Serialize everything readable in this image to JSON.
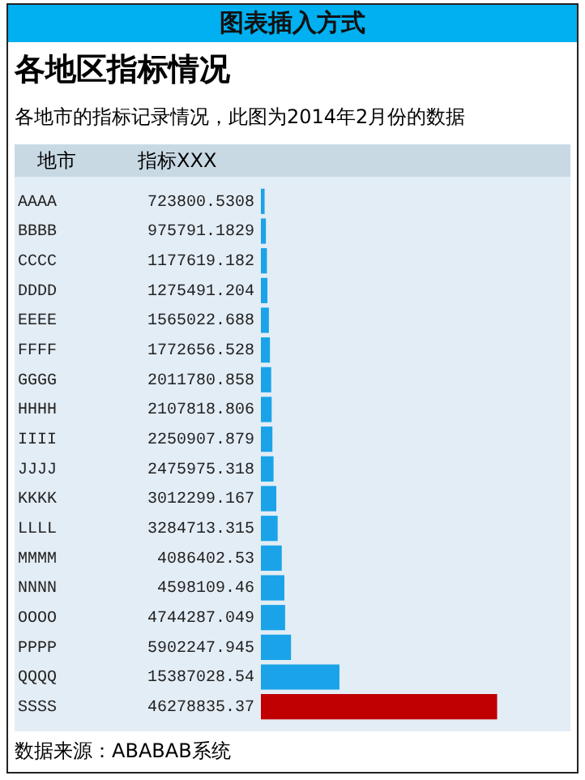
{
  "chart_data": {
    "type": "bar",
    "orientation": "horizontal",
    "title": "各地区指标情况",
    "subtitle": "各地市的指标记录情况，此图为2014年2月份的数据",
    "xlabel": "指标XXX",
    "ylabel": "地市",
    "annotations": [
      "图表插入方式",
      "数据来源：ABABAB系统"
    ],
    "categories": [
      "AAAA",
      "BBBB",
      "CCCC",
      "DDDD",
      "EEEE",
      "FFFF",
      "GGGG",
      "HHHH",
      "IIII",
      "JJJJ",
      "KKKK",
      "LLLL",
      "MMMM",
      "NNNN",
      "OOOO",
      "PPPP",
      "QQQQ",
      "SSSS"
    ],
    "values": [
      723800.5308,
      975791.1829,
      1177619.182,
      1275491.204,
      1565022.688,
      1772656.528,
      2011780.858,
      2107818.806,
      2250907.879,
      2475975.318,
      3012299.167,
      3284713.315,
      4086402.53,
      4598109.46,
      4744287.049,
      5902247.945,
      15387028.54,
      46278835.37
    ],
    "colors": [
      "#1aa3e8",
      "#1aa3e8",
      "#1aa3e8",
      "#1aa3e8",
      "#1aa3e8",
      "#1aa3e8",
      "#1aa3e8",
      "#1aa3e8",
      "#1aa3e8",
      "#1aa3e8",
      "#1aa3e8",
      "#1aa3e8",
      "#1aa3e8",
      "#1aa3e8",
      "#1aa3e8",
      "#1aa3e8",
      "#1aa3e8",
      "#c00000"
    ],
    "data_labels": true,
    "grid": false,
    "legend": false
  }
}
